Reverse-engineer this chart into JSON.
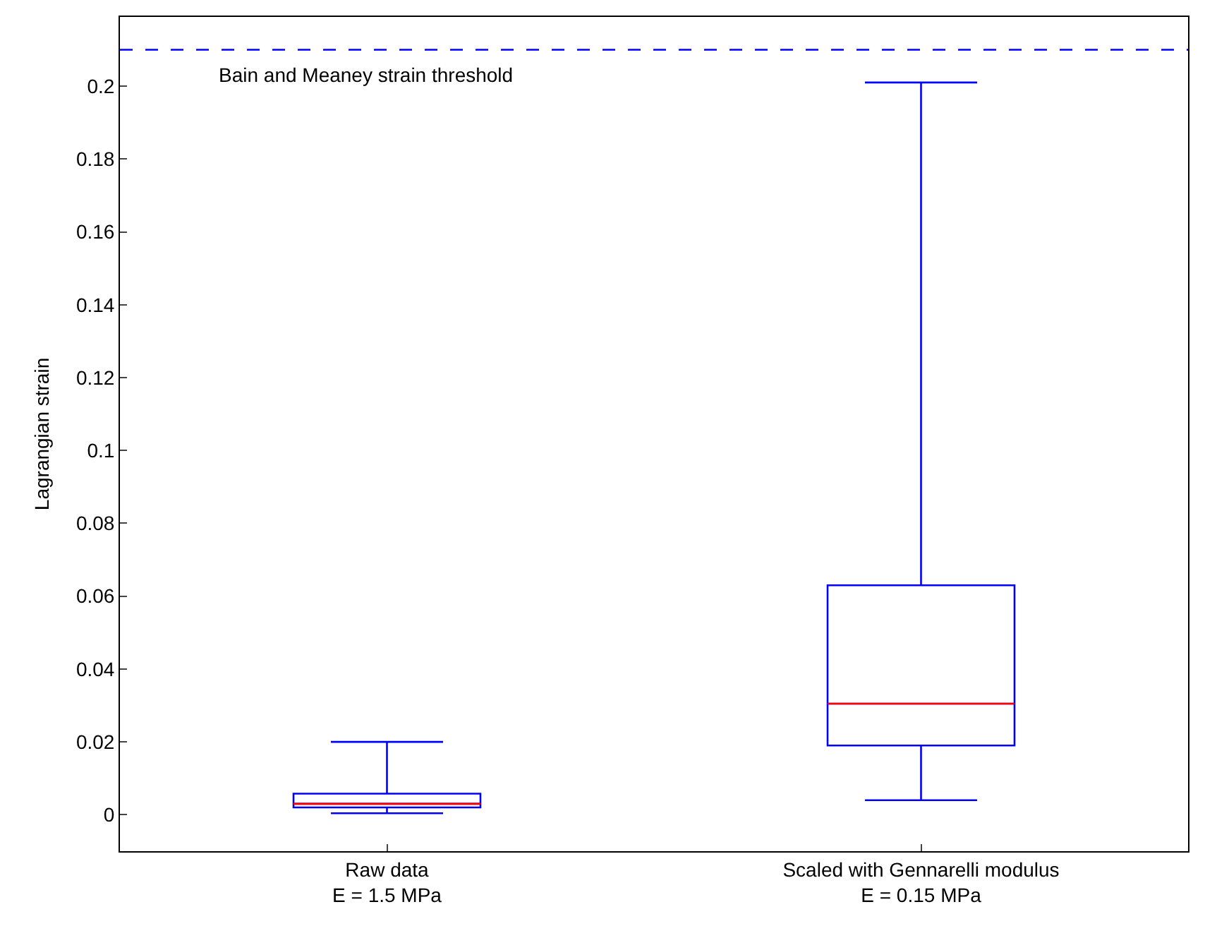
{
  "chart_data": {
    "type": "box",
    "ylabel": "Lagrangian strain",
    "categories": [
      "Raw data\nE = 1.5 MPa",
      "Scaled with Gennarelli modulus\nE = 0.15 MPa"
    ],
    "boxes": [
      {
        "low": 0.0004,
        "q1": 0.002,
        "median": 0.003,
        "q3": 0.0058,
        "high": 0.02
      },
      {
        "low": 0.004,
        "q1": 0.019,
        "median": 0.0305,
        "q3": 0.063,
        "high": 0.201
      }
    ],
    "color": "#0000ff",
    "ylim": [
      -0.01,
      0.219
    ],
    "yticks": [
      0,
      0.02,
      0.04,
      0.06,
      0.08,
      0.1,
      0.12,
      0.14,
      0.16,
      0.18,
      0.2
    ],
    "ref_lines": [
      {
        "axis": "y",
        "value": 0.21,
        "label": "Bain and Meaney strain threshold",
        "color": "#0000ff",
        "line_style": "dashed"
      }
    ]
  }
}
